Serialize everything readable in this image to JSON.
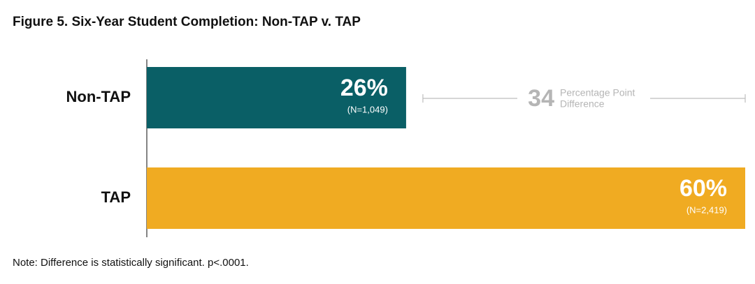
{
  "chart_data": {
    "type": "hbar",
    "title": "Figure 5. Six-Year Student Completion: Non-TAP v. TAP",
    "categories": [
      "Non-TAP",
      "TAP"
    ],
    "values": [
      26,
      60
    ],
    "value_labels": [
      "26%",
      "60%"
    ],
    "sample_labels": [
      "(N=1,049)",
      "(N=2,419)"
    ],
    "colors": [
      "#0a5f66",
      "#f0ab22"
    ],
    "difference": 34,
    "difference_label": [
      "Percentage Point",
      "Difference"
    ],
    "note": "Note: Difference is statistically significant. p<.0001."
  }
}
